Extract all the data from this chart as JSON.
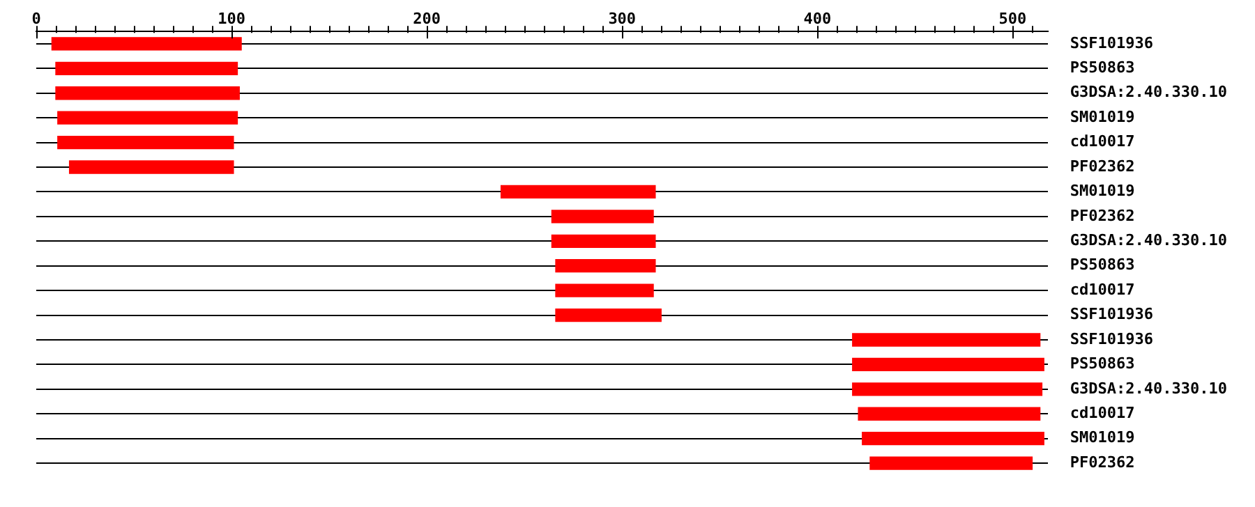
{
  "chart_data": {
    "type": "bar",
    "orientation": "horizontal",
    "grid": "y",
    "color": "#ff0000",
    "categories": [
      "SSF101936",
      "PS50863",
      "G3DSA:2.40.330.10",
      "SM01019",
      "cd10017",
      "PF02362",
      "SM01019",
      "PF02362",
      "G3DSA:2.40.330.10",
      "PS50863",
      "cd10017",
      "SSF101936",
      "SSF101936",
      "PS50863",
      "G3DSA:2.40.330.10",
      "cd10017",
      "SM01019",
      "PF02362"
    ],
    "base": [
      8,
      10,
      10,
      11,
      11,
      17,
      238,
      264,
      264,
      266,
      266,
      266,
      418,
      418,
      418,
      421,
      423,
      427
    ],
    "values": [
      97,
      93,
      94,
      92,
      90,
      84,
      79,
      52,
      53,
      51,
      50,
      54,
      96,
      98,
      97,
      93,
      93,
      83
    ],
    "xlim": [
      0,
      518
    ],
    "xticks": [
      0,
      {
        "value": 10,
        "label": null
      },
      {
        "value": 20,
        "label": null
      },
      {
        "value": 30,
        "label": null
      },
      {
        "value": 40,
        "label": null
      },
      {
        "value": 50,
        "label": null
      },
      {
        "value": 60,
        "label": null
      },
      {
        "value": 70,
        "label": null
      },
      {
        "value": 80,
        "label": null
      },
      {
        "value": 90,
        "label": null
      },
      100,
      {
        "value": 110,
        "label": null
      },
      {
        "value": 120,
        "label": null
      },
      {
        "value": 130,
        "label": null
      },
      {
        "value": 140,
        "label": null
      },
      {
        "value": 150,
        "label": null
      },
      {
        "value": 160,
        "label": null
      },
      {
        "value": 170,
        "label": null
      },
      {
        "value": 180,
        "label": null
      },
      {
        "value": 190,
        "label": null
      },
      200,
      {
        "value": 210,
        "label": null
      },
      {
        "value": 220,
        "label": null
      },
      {
        "value": 230,
        "label": null
      },
      {
        "value": 240,
        "label": null
      },
      {
        "value": 250,
        "label": null
      },
      {
        "value": 260,
        "label": null
      },
      {
        "value": 270,
        "label": null
      },
      {
        "value": 280,
        "label": null
      },
      {
        "value": 290,
        "label": null
      },
      300,
      {
        "value": 310,
        "label": null
      },
      {
        "value": 320,
        "label": null
      },
      {
        "value": 330,
        "label": null
      },
      {
        "value": 340,
        "label": null
      },
      {
        "value": 350,
        "label": null
      },
      {
        "value": 360,
        "label": null
      },
      {
        "value": 370,
        "label": null
      },
      {
        "value": 380,
        "label": null
      },
      {
        "value": 390,
        "label": null
      },
      400,
      {
        "value": 410,
        "label": null
      },
      {
        "value": 420,
        "label": null
      },
      {
        "value": 430,
        "label": null
      },
      {
        "value": 440,
        "label": null
      },
      {
        "value": 450,
        "label": null
      },
      {
        "value": 460,
        "label": null
      },
      {
        "value": 470,
        "label": null
      },
      {
        "value": 480,
        "label": null
      },
      {
        "value": 490,
        "label": null
      },
      500,
      {
        "value": 510,
        "label": null
      }
    ]
  }
}
